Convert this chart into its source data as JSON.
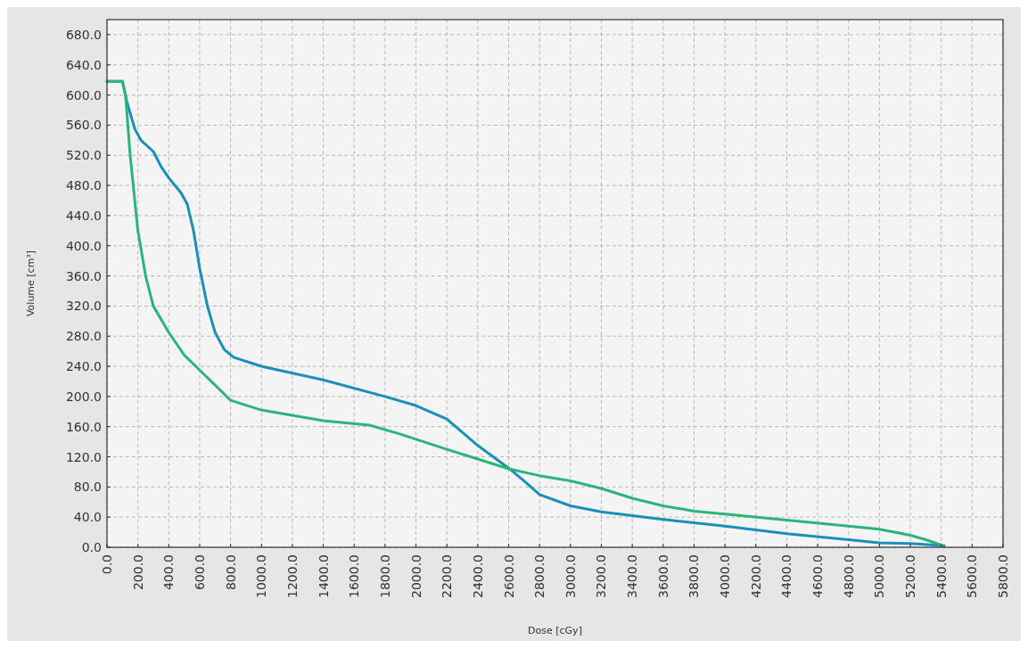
{
  "chart_data": {
    "type": "line",
    "xlabel": "Dose [cGy]",
    "ylabel": "Volume [cm³]",
    "xlim": [
      0,
      5800
    ],
    "ylim": [
      0,
      700
    ],
    "xticks": [
      {
        "value": 0,
        "label": "0.0"
      },
      {
        "value": 200,
        "label": "200.0"
      },
      {
        "value": 400,
        "label": "400.0"
      },
      {
        "value": 600,
        "label": "600.0"
      },
      {
        "value": 800,
        "label": "800.0"
      },
      {
        "value": 1000,
        "label": "1000.0"
      },
      {
        "value": 1200,
        "label": "1200.0"
      },
      {
        "value": 1400,
        "label": "1400.0"
      },
      {
        "value": 1600,
        "label": "1600.0"
      },
      {
        "value": 1800,
        "label": "1800.0"
      },
      {
        "value": 2000,
        "label": "2000.0"
      },
      {
        "value": 2200,
        "label": "2200.0"
      },
      {
        "value": 2400,
        "label": "2400.0"
      },
      {
        "value": 2600,
        "label": "2600.0"
      },
      {
        "value": 2800,
        "label": "2800.0"
      },
      {
        "value": 3000,
        "label": "3000.0"
      },
      {
        "value": 3200,
        "label": "3200.0"
      },
      {
        "value": 3400,
        "label": "3400.0"
      },
      {
        "value": 3600,
        "label": "3600.0"
      },
      {
        "value": 3800,
        "label": "3800.0"
      },
      {
        "value": 4000,
        "label": "4000.0"
      },
      {
        "value": 4200,
        "label": "4200.0"
      },
      {
        "value": 4400,
        "label": "4400.0"
      },
      {
        "value": 4600,
        "label": "4600.0"
      },
      {
        "value": 4800,
        "label": "4800.0"
      },
      {
        "value": 5000,
        "label": "5000.0"
      },
      {
        "value": 5200,
        "label": "5200.0"
      },
      {
        "value": 5400,
        "label": "5400.0"
      },
      {
        "value": 5600,
        "label": "5600.0"
      },
      {
        "value": 5800,
        "label": "5800.0"
      }
    ],
    "yticks": [
      {
        "value": 0,
        "label": "0.0"
      },
      {
        "value": 40,
        "label": "40.0"
      },
      {
        "value": 80,
        "label": "80.0"
      },
      {
        "value": 120,
        "label": "120.0"
      },
      {
        "value": 160,
        "label": "160.0"
      },
      {
        "value": 200,
        "label": "200.0"
      },
      {
        "value": 240,
        "label": "240.0"
      },
      {
        "value": 280,
        "label": "280.0"
      },
      {
        "value": 320,
        "label": "320.0"
      },
      {
        "value": 360,
        "label": "360.0"
      },
      {
        "value": 400,
        "label": "400.0"
      },
      {
        "value": 440,
        "label": "440.0"
      },
      {
        "value": 480,
        "label": "480.0"
      },
      {
        "value": 520,
        "label": "520.0"
      },
      {
        "value": 560,
        "label": "560.0"
      },
      {
        "value": 600,
        "label": "600.0"
      },
      {
        "value": 640,
        "label": "640.0"
      },
      {
        "value": 680,
        "label": "680.0"
      }
    ],
    "grid": true,
    "line_style": "solid",
    "marker": "none",
    "series": [
      {
        "color": "#1a8fb8",
        "x": [
          0,
          100,
          130,
          180,
          220,
          300,
          350,
          400,
          480,
          520,
          560,
          600,
          650,
          700,
          760,
          820,
          1000,
          1400,
          1800,
          2000,
          2200,
          2400,
          2600,
          2700,
          2800,
          3000,
          3200,
          3600,
          4000,
          4400,
          4800,
          5000,
          5200,
          5420
        ],
        "values": [
          618,
          618,
          590,
          555,
          540,
          525,
          505,
          490,
          470,
          455,
          420,
          370,
          320,
          285,
          262,
          252,
          240,
          222,
          200,
          188,
          170,
          135,
          105,
          88,
          70,
          55,
          47,
          37,
          28,
          18,
          10,
          6,
          5,
          2
        ]
      },
      {
        "color": "#2bb57a",
        "x": [
          0,
          100,
          120,
          150,
          200,
          250,
          300,
          400,
          500,
          600,
          700,
          800,
          1000,
          1200,
          1400,
          1700,
          1900,
          2200,
          2400,
          2600,
          2800,
          3000,
          3200,
          3400,
          3600,
          3800,
          4000,
          4400,
          4800,
          5000,
          5200,
          5300,
          5400
        ],
        "values": [
          618,
          618,
          600,
          520,
          420,
          360,
          320,
          285,
          255,
          235,
          215,
          195,
          182,
          175,
          168,
          162,
          150,
          130,
          117,
          104,
          95,
          88,
          78,
          65,
          55,
          48,
          44,
          36,
          28,
          24,
          16,
          10,
          3
        ]
      }
    ]
  }
}
